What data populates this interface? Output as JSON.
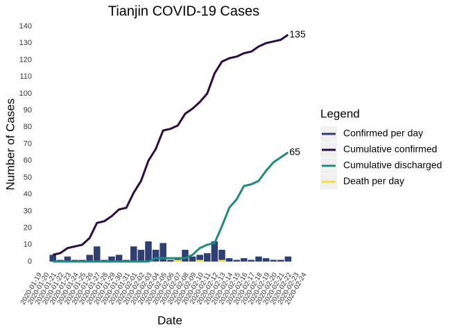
{
  "chart_data": {
    "type": "bar_line",
    "title": "Tianjin COVID-19 Cases",
    "x_label": "Date",
    "y_label": "Number of Cases",
    "legend_title": "Legend",
    "legend_position": "right",
    "grid": false,
    "categories": [
      "2020-01-19",
      "2020-01-20",
      "2020-01-21",
      "2020-01-22",
      "2020-01-23",
      "2020-01-24",
      "2020-01-25",
      "2020-01-26",
      "2020-01-27",
      "2020-01-28",
      "2020-01-29",
      "2020-01-30",
      "2020-01-31",
      "2020-02-01",
      "2020-02-02",
      "2020-02-03",
      "2020-02-04",
      "2020-02-05",
      "2020-02-06",
      "2020-02-07",
      "2020-02-08",
      "2020-02-09",
      "2020-02-10",
      "2020-02-11",
      "2020-02-12",
      "2020-02-13",
      "2020-02-14",
      "2020-02-15",
      "2020-02-16",
      "2020-02-17",
      "2020-02-18",
      "2020-02-19",
      "2020-02-20",
      "2020-02-21",
      "2020-02-22",
      "2020-02-23",
      "2020-02-24"
    ],
    "ylim": [
      0,
      140
    ],
    "yticks": [
      0,
      10,
      20,
      30,
      40,
      50,
      60,
      70,
      80,
      90,
      100,
      110,
      120,
      130,
      140
    ],
    "series": [
      {
        "name": "Confirmed per day",
        "kind": "bar",
        "color": "#2e3f73",
        "values": [
          null,
          null,
          4,
          1,
          3,
          1,
          1,
          4,
          9,
          1,
          3,
          4,
          1,
          9,
          7,
          12,
          7,
          11,
          1,
          2,
          7,
          3,
          4,
          5,
          12,
          7,
          2,
          1,
          2,
          1,
          3,
          2,
          1,
          1,
          3,
          null,
          null
        ]
      },
      {
        "name": "Cumulative confirmed",
        "kind": "line",
        "color": "#2d0b3f",
        "values": [
          null,
          null,
          4,
          5,
          8,
          9,
          10,
          14,
          23,
          24,
          27,
          31,
          32,
          41,
          48,
          60,
          67,
          78,
          79,
          81,
          88,
          91,
          95,
          100,
          112,
          119,
          121,
          122,
          124,
          125,
          128,
          130,
          131,
          132,
          135,
          null,
          null
        ]
      },
      {
        "name": "Cumulative discharged",
        "kind": "line",
        "color": "#1f8a80",
        "values": [
          null,
          null,
          0,
          0,
          0,
          0,
          0,
          0,
          0,
          0,
          0,
          0,
          0,
          0,
          0,
          0,
          2,
          2,
          2,
          2,
          2,
          4,
          8,
          10,
          11,
          21,
          32,
          37,
          45,
          46,
          48,
          54,
          59,
          62,
          65,
          null,
          null
        ]
      },
      {
        "name": "Death per day",
        "kind": "bar",
        "color": "#f5de3c",
        "values": [
          null,
          null,
          0,
          0,
          0,
          0,
          0,
          0,
          0,
          0,
          0,
          0,
          0,
          0,
          0,
          0,
          0,
          0,
          0,
          1,
          0,
          0,
          1,
          0,
          0,
          1,
          0,
          0,
          0,
          0,
          0,
          0,
          0,
          0,
          0,
          null,
          null
        ]
      }
    ],
    "annotations": [
      {
        "text": "135",
        "series": 1,
        "index": 34
      },
      {
        "text": "65",
        "series": 2,
        "index": 34
      }
    ]
  }
}
